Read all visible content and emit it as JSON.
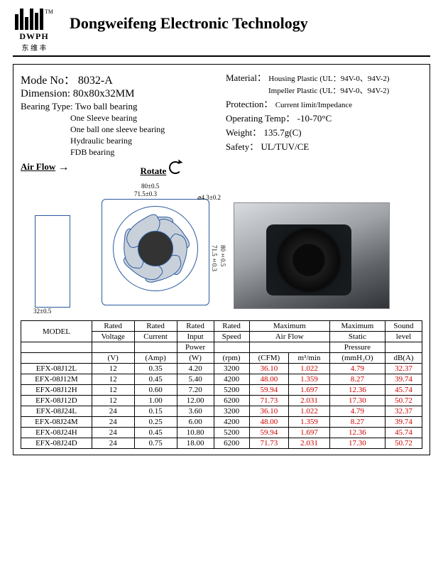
{
  "header": {
    "logo_text": "DWPH",
    "logo_cn": "东 维 丰",
    "tm": "TM",
    "company": "Dongweifeng  Electronic  Technology"
  },
  "spec": {
    "mode_label": "Mode  No：",
    "mode_value": "8032-A",
    "dim_label": "Dimension:",
    "dim_value": "80x80x32MM",
    "bearing_label": "Bearing Type:",
    "bearing_main": "Two ball bearing",
    "bearing_list": [
      "One Sleeve  bearing",
      "One ball one sleeve bearing",
      "Hydraulic      bearing",
      "FDB      bearing"
    ],
    "material_label": "Material：",
    "material_1": "Housing Plastic (UL：94V-0、94V-2)",
    "material_2": "Impeller Plastic (UL：94V-0、94V-2)",
    "protection_label": "Protection：",
    "protection_value": "Current limit/Impedance",
    "optemp_label": "Operating Temp：",
    "optemp_value": "-10-70°C",
    "weight_label": "Weight：",
    "weight_value": "135.7g(C)",
    "safety_label": "Safety：",
    "safety_value": "UL/TUV/CE"
  },
  "diagram": {
    "airflow_label": "Air Flow",
    "rotate_label": "Rotate",
    "d_32": "32±0.5",
    "d_80": "80±0.5",
    "d_715": "71.5±0.3",
    "d_43": "⌀4.3±0.2",
    "d_715v": "71.5±0.3",
    "d_80v": "80±0.5"
  },
  "table": {
    "headers": {
      "model": "MODEL",
      "voltage_top": "Rated",
      "voltage_mid": "Voltage",
      "voltage_unit": "(V)",
      "current_top": "Rated",
      "current_mid": "Current",
      "current_unit": "(Amp)",
      "input_top": "Rated",
      "input_mid": "Input",
      "input_mid2": "Power",
      "input_unit": "(W)",
      "speed_top": "Rated",
      "speed_mid": "Speed",
      "speed_unit": "(rpm)",
      "airflow_top": "Maximum",
      "airflow_mid": "Air Flow",
      "airflow_unit1": "(CFM)",
      "airflow_unit2": "m³/min",
      "static_top": "Maximum",
      "static_mid": "Static",
      "static_mid2": "Pressure",
      "static_unit": "(mmH₂O)",
      "sound_top": "Sound",
      "sound_mid": "level",
      "sound_unit": "dB(A)"
    },
    "rows": [
      {
        "model": "EFX-08J12L",
        "v": "12",
        "a": "0.35",
        "w": "4.20",
        "rpm": "3200",
        "cfm": "36.10",
        "m3": "1.022",
        "mmh": "4.79",
        "db": "32.37"
      },
      {
        "model": "EFX-08J12M",
        "v": "12",
        "a": "0.45",
        "w": "5.40",
        "rpm": "4200",
        "cfm": "48.00",
        "m3": "1.359",
        "mmh": "8.27",
        "db": "39.74"
      },
      {
        "model": "EFX-08J12H",
        "v": "12",
        "a": "0.60",
        "w": "7.20",
        "rpm": "5200",
        "cfm": "59.94",
        "m3": "1.697",
        "mmh": "12.36",
        "db": "45.74"
      },
      {
        "model": "EFX-08J12D",
        "v": "12",
        "a": "1.00",
        "w": "12.00",
        "rpm": "6200",
        "cfm": "71.73",
        "m3": "2.031",
        "mmh": "17.30",
        "db": "50.72"
      },
      {
        "model": "EFX-08J24L",
        "v": "24",
        "a": "0.15",
        "w": "3.60",
        "rpm": "3200",
        "cfm": "36.10",
        "m3": "1.022",
        "mmh": "4.79",
        "db": "32.37"
      },
      {
        "model": "EFX-08J24M",
        "v": "24",
        "a": "0.25",
        "w": "6.00",
        "rpm": "4200",
        "cfm": "48.00",
        "m3": "1.359",
        "mmh": "8.27",
        "db": "39.74"
      },
      {
        "model": "EFX-08J24H",
        "v": "24",
        "a": "0.45",
        "w": "10.80",
        "rpm": "5200",
        "cfm": "59.94",
        "m3": "1.697",
        "mmh": "12.36",
        "db": "45.74"
      },
      {
        "model": "EFX-08J24D",
        "v": "24",
        "a": "0.75",
        "w": "18.00",
        "rpm": "6200",
        "cfm": "71.73",
        "m3": "2.031",
        "mmh": "17.30",
        "db": "50.72"
      }
    ]
  },
  "colors": {
    "red": "#d00000",
    "diagram_line": "#2a5aa0"
  }
}
